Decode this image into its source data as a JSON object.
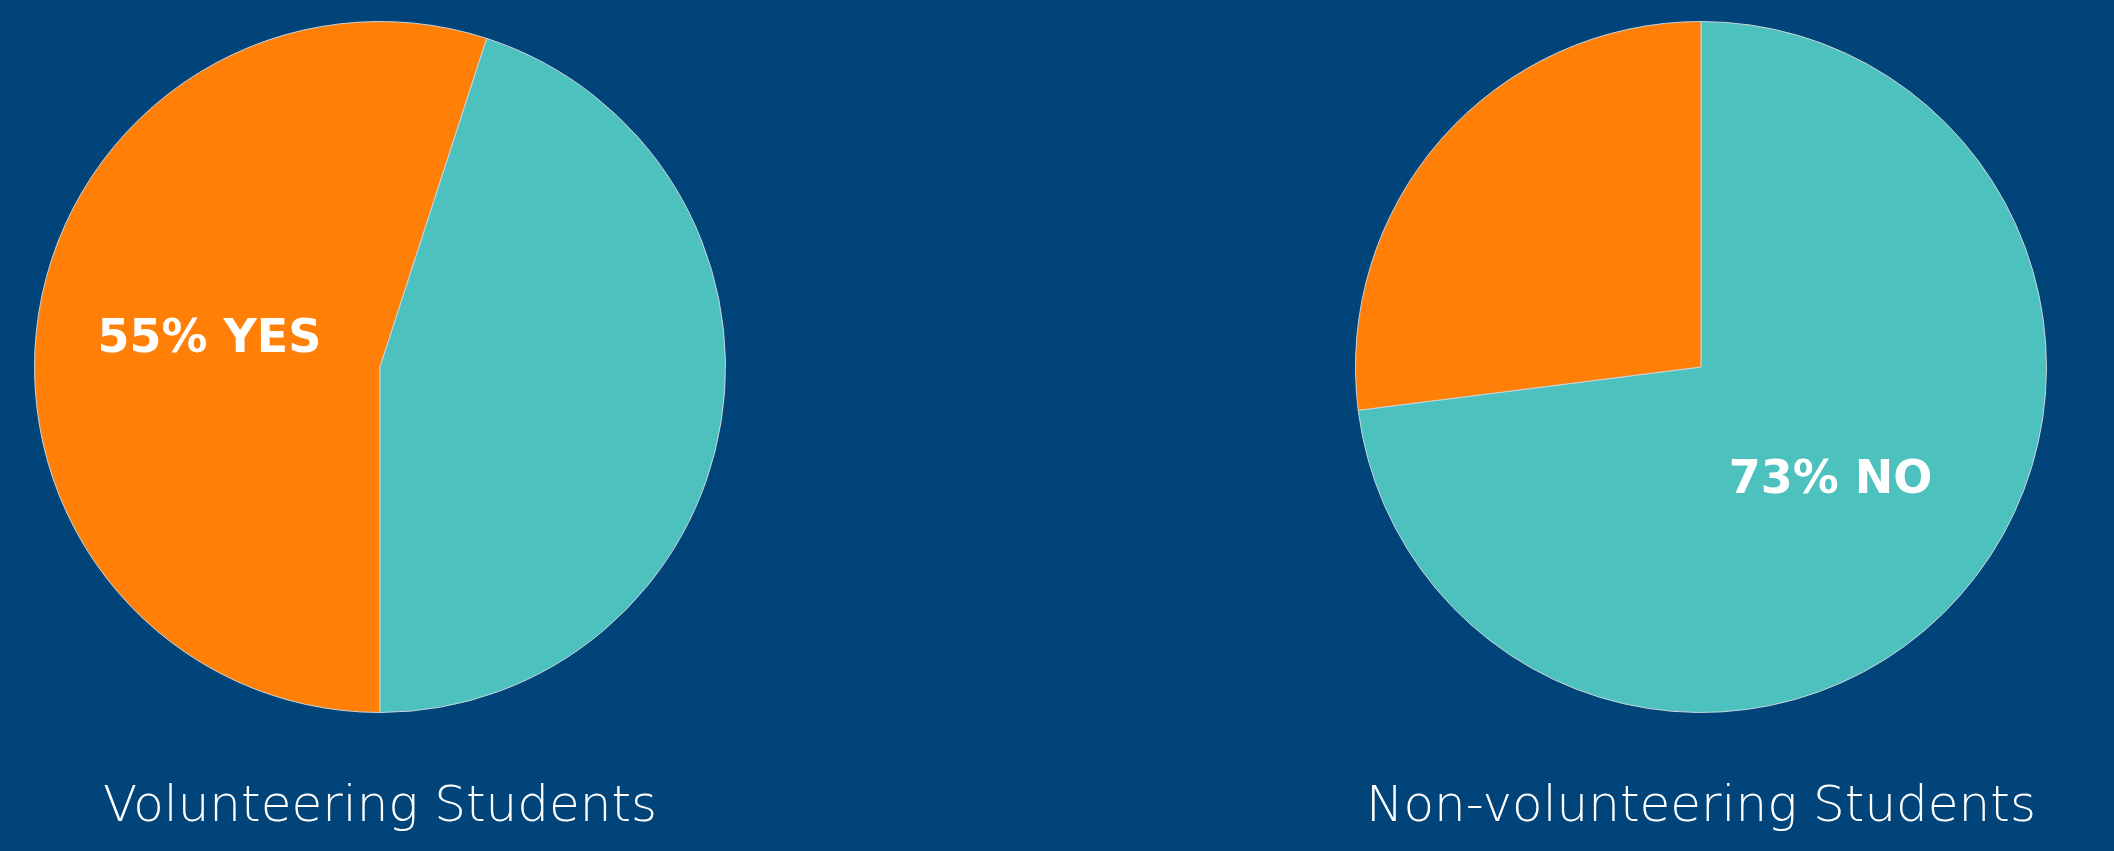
{
  "chart_data": [
    {
      "type": "pie",
      "title": "Volunteering Students",
      "categories": [
        null,
        null
      ],
      "values": [
        55,
        45
      ],
      "colors": [
        "#ff7f07",
        "#4dc1bd"
      ],
      "value_labels": [
        "55% YES",
        null
      ],
      "legend": false
    },
    {
      "type": "pie",
      "title": "Non-volunteering Students",
      "categories": [
        null,
        null
      ],
      "values": [
        73,
        27
      ],
      "colors": [
        "#4dc1bd",
        "#ff7f07"
      ],
      "value_labels": [
        "73% NO",
        null
      ],
      "legend": false
    }
  ]
}
